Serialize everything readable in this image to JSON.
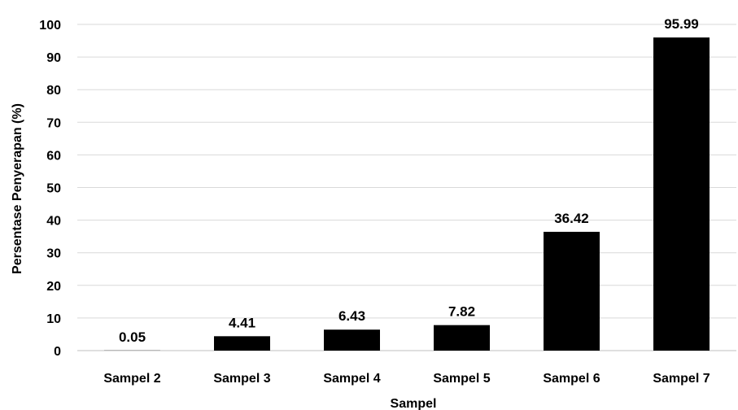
{
  "chart_data": {
    "type": "bar",
    "categories": [
      "Sampel 2",
      "Sampel 3",
      "Sampel 4",
      "Sampel 5",
      "Sampel 6",
      "Sampel 7"
    ],
    "values": [
      0.05,
      4.41,
      6.43,
      7.82,
      36.42,
      95.99
    ],
    "data_labels": [
      "0.05",
      "4.41",
      "6.43",
      "7.82",
      "36.42",
      "95.99"
    ],
    "title": "",
    "xlabel": "Sampel",
    "ylabel": "Persentase Penyerapan (%)",
    "ylim": [
      0,
      100
    ],
    "yticks": [
      0,
      10,
      20,
      30,
      40,
      50,
      60,
      70,
      80,
      90,
      100
    ],
    "grid": true,
    "legend": "none",
    "bar_color": "#000000",
    "grid_color": "#d9d9d9"
  }
}
